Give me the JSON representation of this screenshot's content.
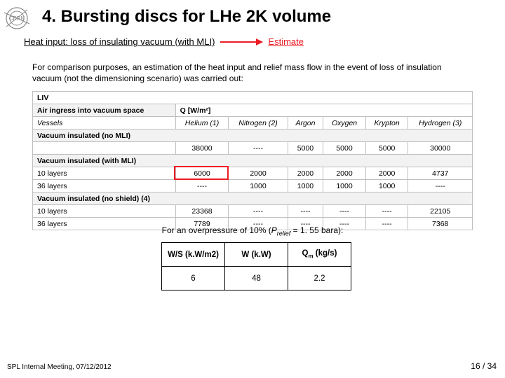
{
  "title": "4. Bursting discs for LHe 2K volume",
  "subtitle": "Heat input: loss of insulating vacuum (with MLI)",
  "estimate_label": "Estimate",
  "intro": "For comparison purposes, an estimation of the heat input and relief mass flow in the event of loss of insulation vacuum (not the dimensioning scenario) was carried out:",
  "table": {
    "top_label": "LIV",
    "section_label": "Air ingress into vacuum space",
    "q_label": "Q [W/m²]",
    "columns": [
      "Vessels",
      "Helium (1)",
      "Nitrogen (2)",
      "Argon",
      "Oxygen",
      "Krypton",
      "Hydrogen (3)"
    ],
    "groups": [
      {
        "header": "Vacuum insulated (no MLI)",
        "rows": [
          {
            "label": "",
            "values": [
              "38000",
              "----",
              "5000",
              "5000",
              "5000",
              "30000"
            ]
          }
        ]
      },
      {
        "header": "Vacuum insulated (with MLI)",
        "rows": [
          {
            "label": "10 layers",
            "values": [
              "6000",
              "2000",
              "2000",
              "2000",
              "2000",
              "4737"
            ],
            "highlight_col": 0
          },
          {
            "label": "36 layers",
            "values": [
              "----",
              "1000",
              "1000",
              "1000",
              "1000",
              "----"
            ]
          }
        ]
      },
      {
        "header": "Vacuum insulated (no shield) (4)",
        "rows": [
          {
            "label": "10 layers",
            "values": [
              "23368",
              "----",
              "----",
              "----",
              "----",
              "22105"
            ]
          },
          {
            "label": "36 layers",
            "values": [
              "7789",
              "----",
              "----",
              "----",
              "----",
              "7368"
            ]
          }
        ]
      }
    ],
    "colors": {
      "border": "#bfbfbf",
      "header_bg": "#f2f2f2",
      "highlight_border": "#ed1c24"
    }
  },
  "overpressure": {
    "prefix": "For an overpressure of 10% (",
    "var": "P",
    "sub": "relief",
    "suffix": " = 1. 55 bara):"
  },
  "summary": {
    "headers": [
      "W/S (k.W/m2)",
      "W (k.W)",
      "Q<sub>m</sub> (kg/s)"
    ],
    "row": [
      "6",
      "48",
      "2.2"
    ]
  },
  "footer": {
    "left": "SPL Internal Meeting, 07/12/2012",
    "right": "16 / 34"
  },
  "colors": {
    "accent": "#ed1c24",
    "text": "#000000",
    "bg": "#ffffff"
  }
}
